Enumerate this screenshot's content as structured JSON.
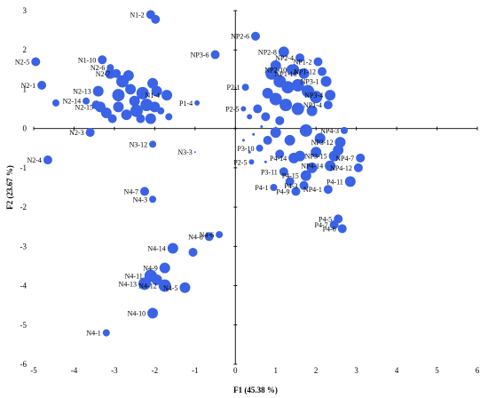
{
  "chart_data": {
    "type": "scatter",
    "xlabel": "F1 (45.38 %)",
    "ylabel": "F2 (23.67 %)",
    "xlim": [
      -5,
      6
    ],
    "ylim": [
      -6,
      3
    ],
    "xticks": [
      "-5",
      "-4",
      "-3",
      "-2",
      "-1",
      "0",
      "1",
      "2",
      "3",
      "4",
      "5",
      "6"
    ],
    "yticks": [
      "3",
      "2",
      "1",
      "0",
      "-1",
      "-2",
      "-3",
      "-4",
      "-5",
      "-6"
    ],
    "grid": false,
    "legend": "none",
    "marker_color": "#3a63e6",
    "points": [
      {
        "label": "N1-2",
        "x": -2.1,
        "y": 2.9,
        "s": 5
      },
      {
        "label": "",
        "x": -1.98,
        "y": 2.78,
        "s": 5
      },
      {
        "label": "N2-5",
        "x": -4.95,
        "y": 1.7,
        "s": 5
      },
      {
        "label": "N1-10",
        "x": -3.3,
        "y": 1.75,
        "s": 5
      },
      {
        "label": "N2-6",
        "x": -3.1,
        "y": 1.55,
        "s": 4
      },
      {
        "label": "N2-7",
        "x": -2.95,
        "y": 1.4,
        "s": 5
      },
      {
        "label": "N2-1",
        "x": -4.8,
        "y": 1.1,
        "s": 5
      },
      {
        "label": "N2-13",
        "x": -3.4,
        "y": 0.95,
        "s": 6
      },
      {
        "label": "N2-14",
        "x": -3.7,
        "y": 0.7,
        "s": 4
      },
      {
        "label": "N2-15",
        "x": -3.35,
        "y": 0.55,
        "s": 6
      },
      {
        "label": "N2-3",
        "x": -3.6,
        "y": -0.1,
        "s": 5
      },
      {
        "label": "N2-4",
        "x": -4.65,
        "y": -0.8,
        "s": 5
      },
      {
        "label": "",
        "x": -3.1,
        "y": 1.4,
        "s": 6
      },
      {
        "label": "",
        "x": -2.8,
        "y": 1.2,
        "s": 7
      },
      {
        "label": "",
        "x": -2.6,
        "y": 1.0,
        "s": 6
      },
      {
        "label": "",
        "x": -2.3,
        "y": 0.9,
        "s": 7
      },
      {
        "label": "",
        "x": -2.9,
        "y": 0.85,
        "s": 7
      },
      {
        "label": "",
        "x": -2.5,
        "y": 0.7,
        "s": 6
      },
      {
        "label": "",
        "x": -2.2,
        "y": 0.6,
        "s": 7
      },
      {
        "label": "",
        "x": -3.2,
        "y": 0.4,
        "s": 6
      },
      {
        "label": "",
        "x": -2.7,
        "y": 0.35,
        "s": 6
      },
      {
        "label": "",
        "x": -2.45,
        "y": 0.45,
        "s": 7
      },
      {
        "label": "",
        "x": -2.9,
        "y": 0.55,
        "s": 6
      },
      {
        "label": "",
        "x": -2.1,
        "y": 0.25,
        "s": 6
      },
      {
        "label": "",
        "x": -2.35,
        "y": 0.25,
        "s": 5
      },
      {
        "label": "",
        "x": -3.05,
        "y": 0.25,
        "s": 5
      },
      {
        "label": "",
        "x": -2.05,
        "y": 1.15,
        "s": 6
      },
      {
        "label": "",
        "x": -1.95,
        "y": 0.95,
        "s": 6
      },
      {
        "label": "",
        "x": -2.0,
        "y": 0.55,
        "s": 6
      },
      {
        "label": "",
        "x": -2.65,
        "y": 1.35,
        "s": 6
      },
      {
        "label": "",
        "x": -3.45,
        "y": 0.6,
        "s": 5
      },
      {
        "label": "",
        "x": -4.45,
        "y": 0.65,
        "s": 4
      },
      {
        "label": "N1-4",
        "x": -1.7,
        "y": 0.85,
        "s": 6
      },
      {
        "label": "",
        "x": -1.85,
        "y": 0.45,
        "s": 4
      },
      {
        "label": "",
        "x": -1.65,
        "y": 0.3,
        "s": 4
      },
      {
        "label": "N3-12",
        "x": -2.05,
        "y": -0.4,
        "s": 4
      },
      {
        "label": "NP3-6",
        "x": -0.5,
        "y": 1.88,
        "s": 5
      },
      {
        "label": "P1-4",
        "x": -0.95,
        "y": 0.65,
        "s": 3
      },
      {
        "label": "N3-3",
        "x": -1.0,
        "y": -0.6,
        "s": 1
      },
      {
        "label": "NP2-6",
        "x": 0.5,
        "y": 2.35,
        "s": 5
      },
      {
        "label": "NP2-8",
        "x": 1.2,
        "y": 1.95,
        "s": 6
      },
      {
        "label": "NP2-4",
        "x": 1.6,
        "y": 1.8,
        "s": 5
      },
      {
        "label": "NP2-10",
        "x": 1.45,
        "y": 1.5,
        "s": 6
      },
      {
        "label": "NP1-2",
        "x": 2.05,
        "y": 1.7,
        "s": 5
      },
      {
        "label": "NP1-12",
        "x": 2.15,
        "y": 1.45,
        "s": 5
      },
      {
        "label": "NP1-10",
        "x": 1.7,
        "y": 1.4,
        "s": 6
      },
      {
        "label": "NP3-1",
        "x": 2.25,
        "y": 1.2,
        "s": 6
      },
      {
        "label": "NP3-4",
        "x": 2.35,
        "y": 0.85,
        "s": 6
      },
      {
        "label": "NP1-4",
        "x": 2.3,
        "y": 0.6,
        "s": 5
      },
      {
        "label": "",
        "x": 0.9,
        "y": 1.4,
        "s": 7
      },
      {
        "label": "",
        "x": 1.1,
        "y": 1.2,
        "s": 7
      },
      {
        "label": "",
        "x": 1.3,
        "y": 1.05,
        "s": 7
      },
      {
        "label": "",
        "x": 1.55,
        "y": 1.1,
        "s": 7
      },
      {
        "label": "",
        "x": 1.8,
        "y": 0.95,
        "s": 7
      },
      {
        "label": "",
        "x": 2.0,
        "y": 0.8,
        "s": 7
      },
      {
        "label": "",
        "x": 0.8,
        "y": 0.9,
        "s": 6
      },
      {
        "label": "",
        "x": 1.0,
        "y": 0.75,
        "s": 7
      },
      {
        "label": "",
        "x": 1.25,
        "y": 0.6,
        "s": 7
      },
      {
        "label": "",
        "x": 1.55,
        "y": 0.5,
        "s": 7
      },
      {
        "label": "",
        "x": 1.9,
        "y": 0.45,
        "s": 6
      },
      {
        "label": "",
        "x": 0.55,
        "y": 0.5,
        "s": 5
      },
      {
        "label": "",
        "x": 0.75,
        "y": 0.3,
        "s": 5
      },
      {
        "label": "",
        "x": 1.1,
        "y": 0.2,
        "s": 5
      },
      {
        "label": "P2-1",
        "x": 0.25,
        "y": 1.05,
        "s": 4
      },
      {
        "label": "P2-5",
        "x": 0.2,
        "y": 0.5,
        "s": 3
      },
      {
        "label": "",
        "x": 0.35,
        "y": 0.3,
        "s": 3
      },
      {
        "label": "",
        "x": 1.4,
        "y": 1.5,
        "s": 6
      },
      {
        "label": "",
        "x": 1.0,
        "y": 1.6,
        "s": 6
      },
      {
        "label": "NP4-3",
        "x": 2.7,
        "y": -0.05,
        "s": 4
      },
      {
        "label": "NP3-12",
        "x": 2.6,
        "y": -0.35,
        "s": 6
      },
      {
        "label": "NP3-15",
        "x": 2.45,
        "y": -0.7,
        "s": 6
      },
      {
        "label": "NP4-7",
        "x": 3.1,
        "y": -0.75,
        "s": 5
      },
      {
        "label": "NP4-14",
        "x": 2.35,
        "y": -0.95,
        "s": 6
      },
      {
        "label": "NP4-12",
        "x": 3.05,
        "y": -1.0,
        "s": 5
      },
      {
        "label": "P4-15",
        "x": 1.75,
        "y": -1.2,
        "s": 6
      },
      {
        "label": "P4-11",
        "x": 2.85,
        "y": -1.35,
        "s": 6
      },
      {
        "label": "P4-14",
        "x": 1.45,
        "y": -0.75,
        "s": 6
      },
      {
        "label": "NP4-1",
        "x": 2.3,
        "y": -1.55,
        "s": 5
      },
      {
        "label": "P4-3",
        "x": 1.7,
        "y": -1.45,
        "s": 5
      },
      {
        "label": "P4-9",
        "x": 1.5,
        "y": -1.6,
        "s": 5
      },
      {
        "label": "P4-1",
        "x": 0.95,
        "y": -1.5,
        "s": 4
      },
      {
        "label": "P3-11",
        "x": 1.2,
        "y": -1.1,
        "s": 5
      },
      {
        "label": "P3-10",
        "x": 0.6,
        "y": -0.5,
        "s": 4
      },
      {
        "label": "P2-5",
        "x": 0.4,
        "y": -0.85,
        "s": 3
      },
      {
        "label": "P4-5",
        "x": 2.55,
        "y": -2.3,
        "s": 5
      },
      {
        "label": "P4-7",
        "x": 2.45,
        "y": -2.45,
        "s": 5
      },
      {
        "label": "P4-6",
        "x": 2.65,
        "y": -2.55,
        "s": 5
      },
      {
        "label": "",
        "x": 1.0,
        "y": -0.1,
        "s": 6
      },
      {
        "label": "",
        "x": 1.35,
        "y": -0.3,
        "s": 6
      },
      {
        "label": "",
        "x": 1.75,
        "y": -0.05,
        "s": 7
      },
      {
        "label": "",
        "x": 2.1,
        "y": -0.25,
        "s": 6
      },
      {
        "label": "",
        "x": 2.0,
        "y": -0.6,
        "s": 6
      },
      {
        "label": "",
        "x": 1.6,
        "y": -0.7,
        "s": 6
      },
      {
        "label": "",
        "x": 1.9,
        "y": -1.0,
        "s": 6
      },
      {
        "label": "",
        "x": 0.8,
        "y": -0.3,
        "s": 5
      },
      {
        "label": "",
        "x": 1.1,
        "y": -0.65,
        "s": 5
      },
      {
        "label": "",
        "x": 1.35,
        "y": -1.35,
        "s": 5
      },
      {
        "label": "",
        "x": 2.55,
        "y": -0.55,
        "s": 6
      },
      {
        "label": "",
        "x": 0.2,
        "y": -0.3,
        "s": 1.5
      },
      {
        "label": "",
        "x": 0.45,
        "y": -0.15,
        "s": 1.5
      },
      {
        "label": "",
        "x": 0.65,
        "y": 0.05,
        "s": 1.5
      },
      {
        "label": "",
        "x": 0.35,
        "y": -0.6,
        "s": 1.5
      },
      {
        "label": "",
        "x": 0.75,
        "y": -0.85,
        "s": 1.5
      },
      {
        "label": "N4-7",
        "x": -2.25,
        "y": -1.6,
        "s": 5
      },
      {
        "label": "N4-3",
        "x": -2.05,
        "y": -1.8,
        "s": 4
      },
      {
        "label": "N4-8",
        "x": -0.65,
        "y": -2.75,
        "s": 5
      },
      {
        "label": "N4-6",
        "x": -0.4,
        "y": -2.7,
        "s": 4
      },
      {
        "label": "N4-14",
        "x": -1.55,
        "y": -3.05,
        "s": 6
      },
      {
        "label": "N4-9",
        "x": -1.75,
        "y": -3.55,
        "s": 6
      },
      {
        "label": "N4-5",
        "x": -1.25,
        "y": -4.05,
        "s": 6
      },
      {
        "label": "N4-11",
        "x": -2.1,
        "y": -3.75,
        "s": 7
      },
      {
        "label": "N4-13",
        "x": -2.25,
        "y": -3.95,
        "s": 7
      },
      {
        "label": "N4-12",
        "x": -1.75,
        "y": -4.0,
        "s": 7
      },
      {
        "label": "N4-10",
        "x": -2.05,
        "y": -4.7,
        "s": 6
      },
      {
        "label": "N4-1",
        "x": -3.2,
        "y": -5.2,
        "s": 4
      },
      {
        "label": "",
        "x": -1.05,
        "y": -3.15,
        "s": 5
      },
      {
        "label": "",
        "x": -1.95,
        "y": -3.85,
        "s": 6
      }
    ]
  }
}
